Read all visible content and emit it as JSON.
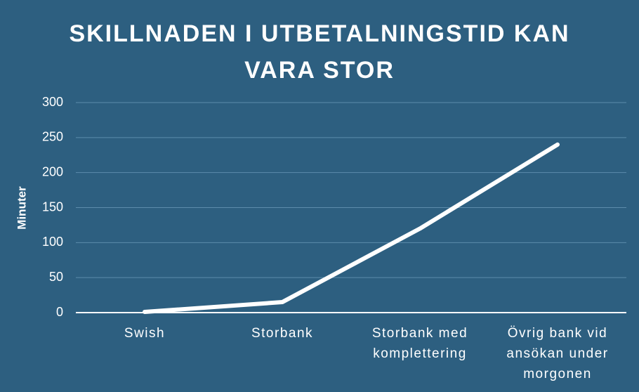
{
  "chart_data": {
    "type": "line",
    "title": "SKILLNADEN I UTBETALNINGSTID KAN VARA STOR",
    "y_label": "Minuter",
    "categories": [
      "Swish",
      "Storbank",
      "Storbank med komplettering",
      "Övrig bank vid ansökan under morgonen"
    ],
    "values": [
      1,
      15,
      120,
      240
    ],
    "color": "#ffffff",
    "ylim": [
      0,
      300
    ],
    "yticks": [
      0,
      50,
      100,
      150,
      200,
      250,
      300
    ],
    "grid": true
  }
}
